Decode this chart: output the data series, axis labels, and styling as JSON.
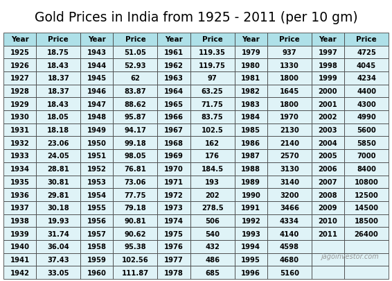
{
  "title": "Gold Prices in India from 1925 - 2011 (per 10 gm)",
  "title_fontsize": 13.5,
  "header_bg": "#aee0e8",
  "row_bg": "#dff3f7",
  "border_color": "#444444",
  "header_text_color": "#000000",
  "cell_text_color": "#000000",
  "watermark": "jagoinvestor.com",
  "columns": [
    "Year",
    "Price",
    "Year",
    "Price",
    "Year",
    "Price",
    "Year",
    "Price",
    "Year",
    "Price"
  ],
  "data": [
    [
      1925,
      "18.75",
      1943,
      "51.05",
      1961,
      "119.35",
      1979,
      "937",
      1997,
      "4725"
    ],
    [
      1926,
      "18.43",
      1944,
      "52.93",
      1962,
      "119.75",
      1980,
      "1330",
      1998,
      "4045"
    ],
    [
      1927,
      "18.37",
      1945,
      "62",
      1963,
      "97",
      1981,
      "1800",
      1999,
      "4234"
    ],
    [
      1928,
      "18.37",
      1946,
      "83.87",
      1964,
      "63.25",
      1982,
      "1645",
      2000,
      "4400"
    ],
    [
      1929,
      "18.43",
      1947,
      "88.62",
      1965,
      "71.75",
      1983,
      "1800",
      2001,
      "4300"
    ],
    [
      1930,
      "18.05",
      1948,
      "95.87",
      1966,
      "83.75",
      1984,
      "1970",
      2002,
      "4990"
    ],
    [
      1931,
      "18.18",
      1949,
      "94.17",
      1967,
      "102.5",
      1985,
      "2130",
      2003,
      "5600"
    ],
    [
      1932,
      "23.06",
      1950,
      "99.18",
      1968,
      "162",
      1986,
      "2140",
      2004,
      "5850"
    ],
    [
      1933,
      "24.05",
      1951,
      "98.05",
      1969,
      "176",
      1987,
      "2570",
      2005,
      "7000"
    ],
    [
      1934,
      "28.81",
      1952,
      "76.81",
      1970,
      "184.5",
      1988,
      "3130",
      2006,
      "8400"
    ],
    [
      1935,
      "30.81",
      1953,
      "73.06",
      1971,
      "193",
      1989,
      "3140",
      2007,
      "10800"
    ],
    [
      1936,
      "29.81",
      1954,
      "77.75",
      1972,
      "202",
      1990,
      "3200",
      2008,
      "12500"
    ],
    [
      1937,
      "30.18",
      1955,
      "79.18",
      1973,
      "278.5",
      1991,
      "3466",
      2009,
      "14500"
    ],
    [
      1938,
      "19.93",
      1956,
      "90.81",
      1974,
      "506",
      1992,
      "4334",
      2010,
      "18500"
    ],
    [
      1939,
      "31.74",
      1957,
      "90.62",
      1975,
      "540",
      1993,
      "4140",
      2011,
      "26400"
    ],
    [
      1940,
      "36.04",
      1958,
      "95.38",
      1976,
      "432",
      1994,
      "4598",
      null,
      null
    ],
    [
      1941,
      "37.43",
      1959,
      "102.56",
      1977,
      "486",
      1995,
      "4680",
      null,
      null
    ],
    [
      1942,
      "33.05",
      1960,
      "111.87",
      1978,
      "685",
      1996,
      "5160",
      null,
      null
    ]
  ],
  "bg_color": "#ffffff"
}
